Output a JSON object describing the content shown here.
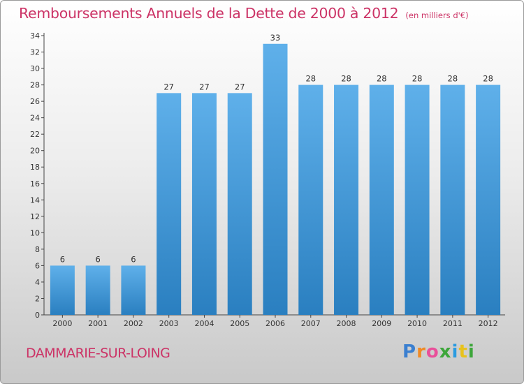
{
  "header": {
    "title": "Remboursements Annuels de la Dette de 2000 à 2012",
    "unit": "(en milliers d'€)"
  },
  "footer": {
    "town": "DAMMARIE-SUR-LOING",
    "logo_letters": [
      "P",
      "r",
      "o",
      "x",
      "i",
      "t",
      "i"
    ],
    "logo_colors": [
      "#3a7fd0",
      "#f08a24",
      "#e94f9a",
      "#3da63a",
      "#2b9be0",
      "#e8c21c",
      "#3da63a"
    ]
  },
  "colors": {
    "bar_top": "#5fb0ea",
    "bar_bottom": "#2a7fc0",
    "label": "#cc3366",
    "axis": "#444444"
  },
  "chart_data": {
    "type": "bar",
    "categories": [
      "2000",
      "2001",
      "2002",
      "2003",
      "2004",
      "2005",
      "2006",
      "2007",
      "2008",
      "2009",
      "2010",
      "2011",
      "2012"
    ],
    "values": [
      6,
      6,
      6,
      27,
      27,
      27,
      33,
      28,
      28,
      28,
      28,
      28,
      28
    ],
    "data_labels": [
      "6",
      "6",
      "6",
      "27",
      "27",
      "27",
      "33",
      "28",
      "28",
      "28",
      "28",
      "28",
      "28"
    ],
    "yticks": [
      "0",
      "2",
      "4",
      "6",
      "8",
      "10",
      "12",
      "14",
      "16",
      "18",
      "20",
      "22",
      "24",
      "26",
      "28",
      "30",
      "32",
      "34"
    ],
    "ylim": [
      0,
      34
    ],
    "grid": false
  }
}
